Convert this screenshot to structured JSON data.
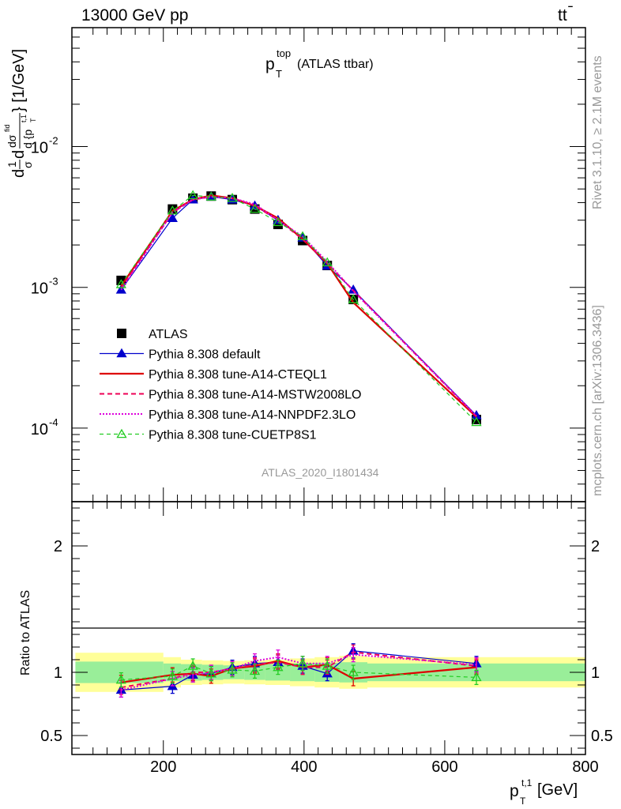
{
  "header": {
    "left": "13000 GeV pp",
    "right_main": "tt",
    "right_bar": "̄"
  },
  "title": {
    "main": "p",
    "sup": "top",
    "sub": "T",
    "rest": "(ATLAS ttbar)"
  },
  "side_labels": {
    "rivet": "Rivet 3.1.10, ≥ 2.1M events",
    "mcplots": "mcplots.cern.ch [arXiv:1306.3436]"
  },
  "analysis_id": "ATLAS_2020_I1801434",
  "ylabel_top": {
    "pre": "d",
    "frac1_num": "1",
    "frac1_den": "σ",
    "mid": "d",
    "frac2_num": "dσ",
    "frac2_num_sup": "fid",
    "frac2_den": "d {p",
    "frac2_den_sup": "t,1",
    "frac2_den_sub": "T",
    "post": "} [1/GeV]"
  },
  "ylabel_bottom": "Ratio to ATLAS",
  "xlabel": {
    "main": "p",
    "sup": "t,1",
    "sub": "T",
    "unit": "[GeV]"
  },
  "colors": {
    "atlas": "#000000",
    "default": "#0000cc",
    "cteql1": "#dd0000",
    "mstw": "#ee0055",
    "nnpdf": "#dd00dd",
    "cuetp8s1": "#22cc22",
    "band_inner": "#99ee99",
    "band_outer": "#ffff99"
  },
  "chart_data": [
    {
      "type": "line",
      "yscale": "log",
      "xlim": [
        70,
        800
      ],
      "ylim": [
        3e-05,
        0.07
      ],
      "ytick_labels": [
        "10",
        "10",
        "10"
      ],
      "ytick_exps": [
        "-4",
        "-3",
        "-2"
      ],
      "x": [
        140,
        213,
        242,
        268,
        298,
        330,
        363,
        398,
        433,
        470,
        645
      ],
      "legend_position": "middle-left",
      "series": [
        {
          "name": "ATLAS",
          "style": "data",
          "values": [
            0.00112,
            0.0036,
            0.0043,
            0.00445,
            0.0042,
            0.0036,
            0.0028,
            0.00215,
            0.00143,
            0.00082,
            0.000115
          ]
        },
        {
          "name": "Pythia 8.308 default",
          "style": "default",
          "values": [
            0.00096,
            0.0031,
            0.0042,
            0.0044,
            0.0042,
            0.0038,
            0.003,
            0.00225,
            0.00142,
            0.00096,
            0.000123
          ]
        },
        {
          "name": "Pythia 8.308 tune-A14-CTEQL1",
          "style": "cteql1",
          "values": [
            0.00102,
            0.0035,
            0.0042,
            0.0045,
            0.0043,
            0.0038,
            0.0031,
            0.0022,
            0.00148,
            0.00078,
            0.00012
          ]
        },
        {
          "name": "Pythia 8.308 tune-A14-MSTW2008LO",
          "style": "mstw",
          "values": [
            0.00099,
            0.0034,
            0.0042,
            0.0044,
            0.0043,
            0.0038,
            0.003,
            0.0022,
            0.00148,
            0.00095,
            0.000121
          ]
        },
        {
          "name": "Pythia 8.308 tune-A14-NNPDF2.3LO",
          "style": "nnpdf",
          "values": [
            0.00096,
            0.0034,
            0.0042,
            0.0044,
            0.0043,
            0.0039,
            0.003,
            0.0023,
            0.00152,
            0.00094,
            0.000122
          ]
        },
        {
          "name": "Pythia 8.308 tune-CUETP8S1",
          "style": "cuetp8s1",
          "values": [
            0.00105,
            0.0035,
            0.0045,
            0.0044,
            0.0043,
            0.0036,
            0.0029,
            0.0023,
            0.0015,
            0.00082,
            0.00011
          ]
        }
      ]
    },
    {
      "type": "line",
      "ylim": [
        0.35,
        2.35
      ],
      "ytick_labels": [
        "0.5",
        "1",
        "2"
      ],
      "ytick_values": [
        0.5,
        1,
        2
      ],
      "xtick_labels": [
        "200",
        "400",
        "600",
        "800"
      ],
      "xtick_values": [
        200,
        400,
        600,
        800
      ],
      "x": [
        140,
        213,
        242,
        268,
        298,
        330,
        363,
        398,
        433,
        470,
        645
      ],
      "bands": {
        "edges": [
          75,
          200,
          225,
          255,
          285,
          315,
          345,
          380,
          415,
          450,
          490,
          800
        ],
        "inner_half": [
          0.085,
          0.07,
          0.065,
          0.06,
          0.055,
          0.06,
          0.065,
          0.07,
          0.075,
          0.08,
          0.07
        ],
        "outer_half": [
          0.155,
          0.12,
          0.1,
          0.095,
          0.09,
          0.095,
          0.1,
          0.11,
          0.12,
          0.13,
          0.12
        ]
      },
      "series": [
        {
          "name": "Pythia 8.308 default",
          "style": "default",
          "values": [
            0.86,
            0.89,
            0.98,
            0.99,
            1.04,
            1.07,
            1.08,
            1.05,
            0.99,
            1.17,
            1.07
          ]
        },
        {
          "name": "Pythia 8.308 tune-A14-CTEQL1",
          "style": "cteql1",
          "values": [
            0.92,
            0.98,
            0.99,
            0.97,
            1.03,
            1.05,
            1.09,
            1.04,
            1.06,
            0.95,
            1.04
          ]
        },
        {
          "name": "Pythia 8.308 tune-A14-MSTW2008LO",
          "style": "mstw",
          "values": [
            0.88,
            0.95,
            1.0,
            1.0,
            1.03,
            1.06,
            1.08,
            1.04,
            1.04,
            1.16,
            1.05
          ]
        },
        {
          "name": "Pythia 8.308 tune-A14-NNPDF2.3LO",
          "style": "nnpdf",
          "values": [
            0.86,
            0.95,
            0.98,
            1.0,
            1.03,
            1.09,
            1.12,
            1.07,
            1.07,
            1.14,
            1.06
          ]
        },
        {
          "name": "Pythia 8.308 tune-CUETP8S1",
          "style": "cuetp8s1",
          "values": [
            0.94,
            0.97,
            1.05,
            0.99,
            1.02,
            1.01,
            1.04,
            1.07,
            1.05,
            1.0,
            0.96
          ]
        }
      ]
    }
  ]
}
